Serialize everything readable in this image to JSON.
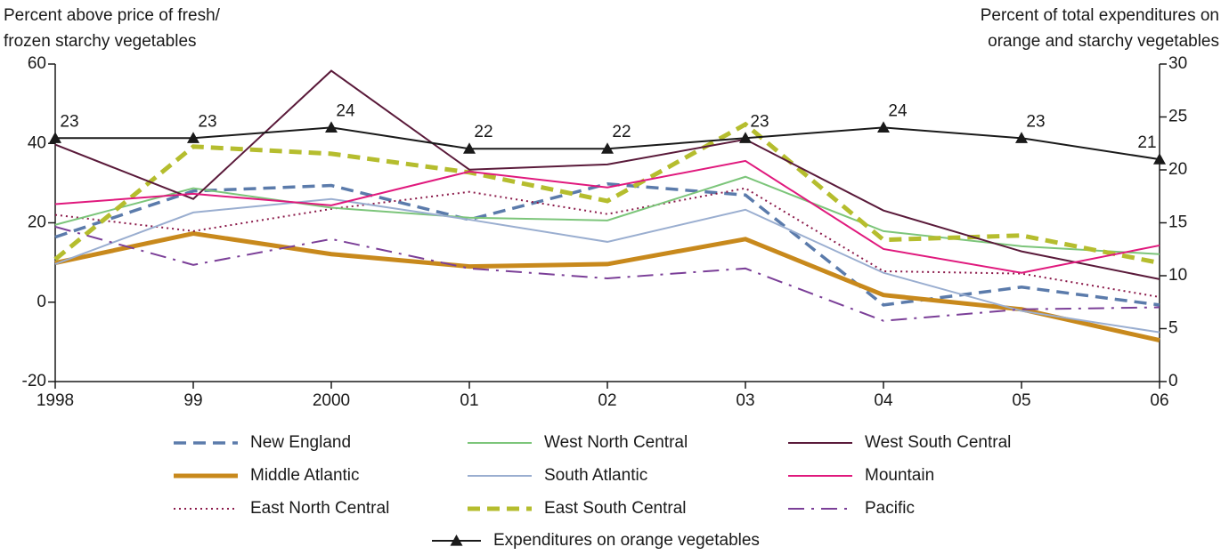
{
  "chart_data": {
    "type": "line",
    "ylabel": [
      "Percent above price of fresh/",
      "frozen starchy vegetables"
    ],
    "y2label": [
      "Percent of total expenditures on",
      "orange and starchy vegetables"
    ],
    "categories": [
      "1998",
      "99",
      "2000",
      "01",
      "02",
      "03",
      "04",
      "05",
      "06"
    ],
    "ylim": [
      -20,
      60
    ],
    "yticks": [
      -20,
      0,
      20,
      40,
      60
    ],
    "y2lim": [
      0,
      30
    ],
    "y2ticks": [
      0,
      5,
      10,
      15,
      20,
      25,
      30
    ],
    "legend": "bottom",
    "series": [
      {
        "name": "New England",
        "color": "#5b7bab",
        "dash": "dashed",
        "weight": "medium",
        "values": [
          16.4,
          28,
          29.4,
          20.8,
          29.8,
          27,
          -0.7,
          3.8,
          -0.7
        ]
      },
      {
        "name": "Middle Atlantic",
        "color": "#c8891c",
        "dash": "solid",
        "weight": "thick",
        "values": [
          9.9,
          17.3,
          12.1,
          9,
          9.6,
          15.9,
          1.8,
          -1.8,
          -9.6
        ]
      },
      {
        "name": "East North Central",
        "color": "#8b1a4a",
        "dash": "dotted",
        "weight": "normal",
        "values": [
          22,
          17.9,
          23.5,
          27.8,
          22.2,
          28.7,
          7.8,
          7.2,
          1.3
        ]
      },
      {
        "name": "West North Central",
        "color": "#7cc57a",
        "dash": "solid",
        "weight": "normal",
        "values": [
          19.5,
          28.7,
          23.8,
          21.3,
          20.6,
          31.6,
          17.9,
          14.1,
          12.1
        ]
      },
      {
        "name": "South Atlantic",
        "color": "#9aaed0",
        "dash": "solid",
        "weight": "normal",
        "values": [
          9.6,
          22.6,
          26,
          20.8,
          15.2,
          23.3,
          7.4,
          -2.2,
          -7.6
        ]
      },
      {
        "name": "East South Central",
        "color": "#b5bd2e",
        "dash": "dashed",
        "weight": "thick",
        "values": [
          10.8,
          39.2,
          37.4,
          32.7,
          25.5,
          44.8,
          15.7,
          16.8,
          9.9
        ]
      },
      {
        "name": "West South Central",
        "color": "#5a1a3a",
        "dash": "solid",
        "weight": "normal",
        "values": [
          39.7,
          26,
          58.3,
          33.4,
          34.7,
          41,
          23.1,
          12.8,
          5.8
        ]
      },
      {
        "name": "Mountain",
        "color": "#e0197d",
        "dash": "solid",
        "weight": "normal",
        "values": [
          24.7,
          27.3,
          24.4,
          32.9,
          28.9,
          35.6,
          13.4,
          7.4,
          14.3
        ]
      },
      {
        "name": "Pacific",
        "color": "#7b3f98",
        "dash": "dashdot",
        "weight": "normal",
        "values": [
          19,
          9.4,
          15.9,
          8.5,
          6,
          8.5,
          -4.7,
          -1.8,
          -1.3
        ]
      },
      {
        "name": "Expenditures on orange vegetables",
        "color": "#1a1a1a",
        "dash": "solid",
        "weight": "normal",
        "marker": "triangle",
        "axis": "y2",
        "labels": true,
        "values": [
          23,
          23,
          24,
          22,
          22,
          23,
          24,
          23,
          21
        ]
      }
    ]
  }
}
